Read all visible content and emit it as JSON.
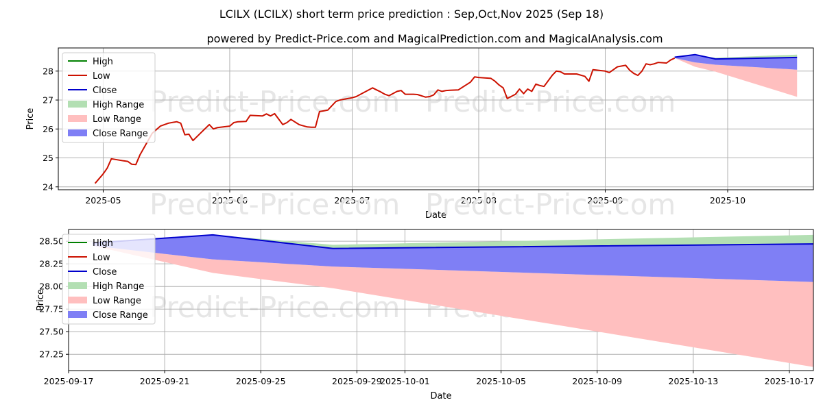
{
  "title": "LCILX (LCILX) short term price prediction : Sep,Oct,Nov 2025 (Sep 18)",
  "subtitle": "powered by Predict-Price.com and MagicalPrediction.com and MagicalAnalysis.com",
  "watermark": "Predict-Price.com",
  "colors": {
    "high": "#008000",
    "low": "#cc1100",
    "close": "#0000cc",
    "high_range": "#b3dfb3",
    "low_range": "#ffbfbf",
    "close_range": "#7f7ff5",
    "grid": "#b0b0b0"
  },
  "legend": {
    "placement": "upper-left",
    "items": [
      "High",
      "Low",
      "Close",
      "High Range",
      "Low Range",
      "Close Range"
    ]
  },
  "chart_data": [
    {
      "type": "line",
      "xlabel": "Date",
      "ylabel": "Price",
      "xlim": [
        "2025-04-20",
        "2025-10-22"
      ],
      "ylim": [
        23.9,
        28.8
      ],
      "x_ticks": [
        "2025-05",
        "2025-06",
        "2025-07",
        "2025-08",
        "2025-09",
        "2025-10"
      ],
      "y_ticks": [
        "24",
        "25",
        "26",
        "27",
        "28"
      ],
      "grid": true,
      "series": [
        {
          "name": "Low",
          "x": [
            "2025-04-29",
            "2025-05-01",
            "2025-05-02",
            "2025-05-03",
            "2025-05-06",
            "2025-05-07",
            "2025-05-08",
            "2025-05-09",
            "2025-05-10",
            "2025-05-13",
            "2025-05-15",
            "2025-05-17",
            "2025-05-19",
            "2025-05-20",
            "2025-05-21",
            "2025-05-22",
            "2025-05-23",
            "2025-05-25",
            "2025-05-27",
            "2025-05-28",
            "2025-05-29",
            "2025-06-01",
            "2025-06-02",
            "2025-06-03",
            "2025-06-05",
            "2025-06-06",
            "2025-06-09",
            "2025-06-10",
            "2025-06-11",
            "2025-06-12",
            "2025-06-14",
            "2025-06-15",
            "2025-06-16",
            "2025-06-18",
            "2025-06-20",
            "2025-06-21",
            "2025-06-22",
            "2025-06-23",
            "2025-06-25",
            "2025-06-27",
            "2025-06-28",
            "2025-07-01",
            "2025-07-02",
            "2025-07-06",
            "2025-07-07",
            "2025-07-08",
            "2025-07-09",
            "2025-07-10",
            "2025-07-12",
            "2025-07-13",
            "2025-07-14",
            "2025-07-15",
            "2025-07-16",
            "2025-07-17",
            "2025-07-19",
            "2025-07-20",
            "2025-07-21",
            "2025-07-22",
            "2025-07-23",
            "2025-07-24",
            "2025-07-25",
            "2025-07-27",
            "2025-07-30",
            "2025-07-31",
            "2025-08-01",
            "2025-08-04",
            "2025-08-05",
            "2025-08-06",
            "2025-08-07",
            "2025-08-08",
            "2025-08-10",
            "2025-08-11",
            "2025-08-12",
            "2025-08-13",
            "2025-08-14",
            "2025-08-15",
            "2025-08-16",
            "2025-08-17",
            "2025-08-19",
            "2025-08-20",
            "2025-08-21",
            "2025-08-22",
            "2025-08-23",
            "2025-08-25",
            "2025-08-27",
            "2025-08-28",
            "2025-08-29",
            "2025-09-01",
            "2025-09-02",
            "2025-09-03",
            "2025-09-04",
            "2025-09-06",
            "2025-09-07",
            "2025-09-08",
            "2025-09-09",
            "2025-09-10",
            "2025-09-11",
            "2025-09-12",
            "2025-09-13",
            "2025-09-14",
            "2025-09-16",
            "2025-09-17",
            "2025-09-18"
          ],
          "values": [
            24.12,
            24.45,
            24.65,
            24.97,
            24.9,
            24.88,
            24.78,
            24.77,
            25.1,
            25.85,
            26.1,
            26.2,
            26.25,
            26.2,
            25.8,
            25.82,
            25.6,
            25.88,
            26.15,
            26.0,
            26.05,
            26.1,
            26.22,
            26.25,
            26.26,
            26.47,
            26.45,
            26.52,
            26.45,
            26.53,
            26.15,
            26.22,
            26.33,
            26.15,
            26.07,
            26.06,
            26.06,
            26.6,
            26.65,
            26.95,
            27.0,
            27.08,
            27.12,
            27.42,
            27.35,
            27.28,
            27.2,
            27.15,
            27.3,
            27.33,
            27.2,
            27.2,
            27.2,
            27.19,
            27.1,
            27.12,
            27.18,
            27.35,
            27.3,
            27.33,
            27.34,
            27.35,
            27.62,
            27.8,
            27.78,
            27.75,
            27.65,
            27.52,
            27.42,
            27.05,
            27.2,
            27.38,
            27.22,
            27.38,
            27.3,
            27.55,
            27.5,
            27.47,
            27.85,
            28.0,
            27.98,
            27.9,
            27.9,
            27.9,
            27.82,
            27.65,
            28.05,
            28.0,
            27.95,
            28.05,
            28.15,
            28.2,
            28.03,
            27.92,
            27.85,
            28.0,
            28.25,
            28.22,
            28.25,
            28.3,
            28.28,
            28.38,
            28.45
          ]
        }
      ]
    },
    {
      "type": "area",
      "xlabel": "Date",
      "ylabel": "Price",
      "xlim": [
        "2025-09-17",
        "2025-10-18"
      ],
      "ylim": [
        27.07,
        28.63
      ],
      "x_ticks": [
        "2025-09-17",
        "2025-09-21",
        "2025-09-25",
        "2025-09-29",
        "2025-10-01",
        "2025-10-05",
        "2025-10-09",
        "2025-10-13",
        "2025-10-17"
      ],
      "y_ticks": [
        "27.25",
        "27.50",
        "27.75",
        "28.00",
        "28.25",
        "28.50"
      ],
      "grid": true,
      "x": [
        "2025-09-18",
        "2025-09-23",
        "2025-09-28",
        "2025-10-18"
      ],
      "series": [
        {
          "name": "High Range",
          "upper": [
            28.48,
            28.57,
            28.46,
            28.57
          ],
          "lower": [
            28.48,
            28.57,
            28.42,
            28.47
          ]
        },
        {
          "name": "Low Range",
          "upper": [
            28.45,
            28.3,
            28.22,
            28.05
          ],
          "lower": [
            28.45,
            28.15,
            27.98,
            27.11
          ]
        },
        {
          "name": "Close Range",
          "upper": [
            28.48,
            28.57,
            28.42,
            28.47
          ],
          "lower": [
            28.45,
            28.3,
            28.22,
            28.05
          ]
        },
        {
          "name": "Close",
          "values": [
            28.48,
            28.57,
            28.42,
            28.47
          ]
        }
      ]
    }
  ]
}
